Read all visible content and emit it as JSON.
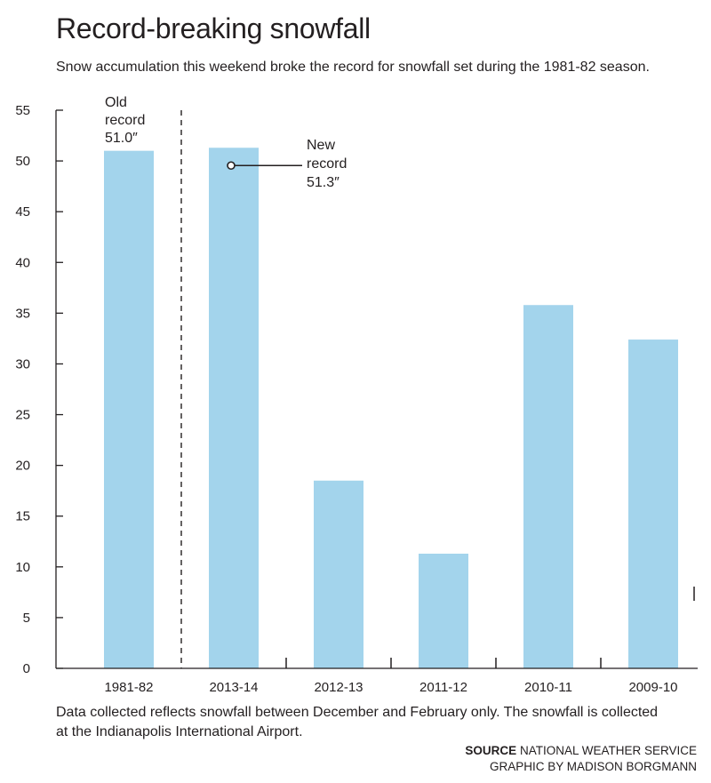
{
  "title": "Record-breaking snowfall",
  "subtitle": "Snow accumulation this weekend broke the record for snowfall set during the 1981-82 season.",
  "footnote": "Data collected reflects snowfall between December and February only. The snowfall is collected at the Indianapolis International Airport.",
  "source_label": "SOURCE",
  "source_text": "NATIONAL WEATHER SERVICE",
  "graphic_credit": "GRAPHIC BY MADISON BORGMANN",
  "colors": {
    "bar": "#a3d4ec",
    "text": "#231f20"
  },
  "chart_data": {
    "type": "bar",
    "categories": [
      "1981-82",
      "2013-14",
      "2012-13",
      "2011-12",
      "2010-11",
      "2009-10"
    ],
    "values": [
      51.0,
      51.3,
      18.5,
      11.3,
      35.8,
      32.4
    ],
    "ylim": [
      0,
      55
    ],
    "yticks": [
      0,
      5,
      10,
      15,
      20,
      25,
      30,
      35,
      40,
      45,
      50,
      55
    ],
    "grid": false,
    "annotations": [
      {
        "category": "1981-82",
        "lines": [
          "Old",
          "record",
          "51.0″"
        ]
      },
      {
        "category": "2013-14",
        "lines": [
          "New",
          "record",
          "51.3″"
        ]
      }
    ]
  }
}
